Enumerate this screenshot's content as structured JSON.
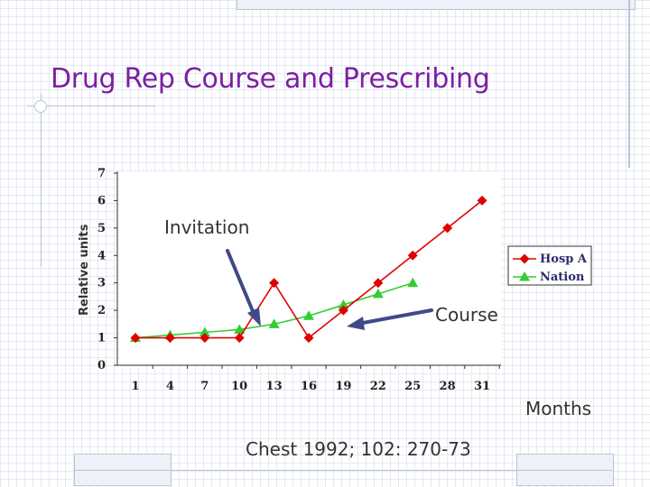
{
  "slide": {
    "title": "Drug Rep Course and Prescribing",
    "citation": "Chest 1992; 102: 270-73"
  },
  "annotations": {
    "invitation": "Invitation",
    "course": "Course",
    "months": "Months"
  },
  "colors": {
    "title": "#7b1fa2",
    "hosp_a": "#e00000",
    "nation": "#33cc33",
    "arrow": "#404a88"
  },
  "chart_data": {
    "type": "line",
    "title": "",
    "xlabel": "Months",
    "ylabel": "Relative units",
    "categories": [
      "1",
      "4",
      "7",
      "10",
      "13",
      "16",
      "19",
      "22",
      "25",
      "28",
      "31"
    ],
    "ylim": [
      0,
      7
    ],
    "yticks": [
      "0",
      "1",
      "2",
      "3",
      "4",
      "5",
      "6",
      "7"
    ],
    "grid": false,
    "legend_position": "right",
    "series": [
      {
        "name": "Hosp A",
        "color": "#e00000",
        "marker": "diamond",
        "values": [
          1,
          1,
          1,
          1,
          3,
          1,
          2,
          3,
          4,
          5,
          6
        ]
      },
      {
        "name": "Nation",
        "color": "#33cc33",
        "marker": "triangle",
        "values": [
          1,
          1.1,
          1.2,
          1.3,
          1.5,
          1.8,
          2.2,
          2.6,
          3.0,
          null,
          null
        ]
      }
    ]
  }
}
